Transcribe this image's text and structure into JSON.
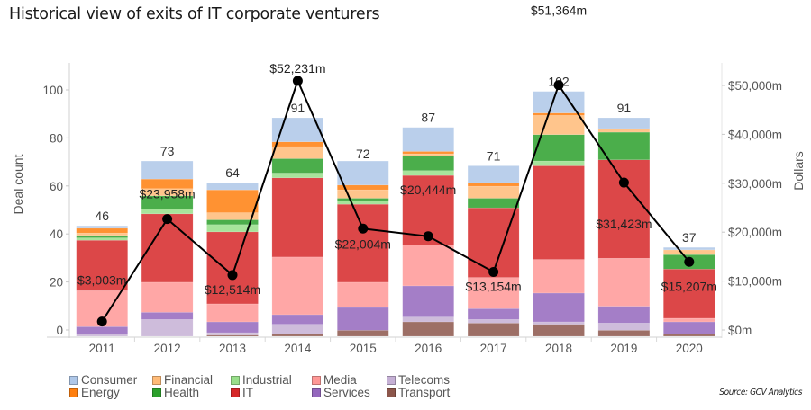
{
  "title": "Historical view of exits of IT corporate venturers",
  "source": "Source: GCV Analytics",
  "chart_data": {
    "type": "bar",
    "subtype": "stacked-bar-with-line",
    "title": "Historical view of exits of IT corporate venturers",
    "xlabel": "",
    "ylabel": "Deal count",
    "y2label": "Dollars",
    "categories": [
      "2011",
      "2012",
      "2013",
      "2014",
      "2015",
      "2016",
      "2017",
      "2018",
      "2019",
      "2020"
    ],
    "ylim": [
      0,
      110
    ],
    "yticks": [
      0,
      20,
      40,
      60,
      80,
      100
    ],
    "y2lim": [
      0,
      55000
    ],
    "y2ticks": [
      0,
      10000,
      20000,
      30000,
      40000,
      50000
    ],
    "y2tick_labels": [
      "$0m",
      "$10,000m",
      "$20,000m",
      "$30,000m",
      "$40,000m",
      "$50,000m"
    ],
    "stack_order_bottom_to_top": [
      "Transport",
      "Telecoms",
      "Services",
      "Media",
      "IT",
      "Industrial",
      "Health",
      "Financial",
      "Energy",
      "Consumer"
    ],
    "series": [
      {
        "name": "Consumer",
        "color": "#aec7e8",
        "values": [
          1,
          7.5,
          3,
          10,
          10,
          10,
          7,
          9,
          4.5,
          1
        ]
      },
      {
        "name": "Energy",
        "color": "#ff7f0e",
        "values": [
          2,
          4,
          9.5,
          2,
          2,
          1,
          1.5,
          1,
          0,
          0
        ]
      },
      {
        "name": "Financial",
        "color": "#ffbb78",
        "values": [
          1,
          3,
          3,
          5,
          3.5,
          1,
          5,
          8,
          1.5,
          2
        ]
      },
      {
        "name": "Health",
        "color": "#2ca02c",
        "values": [
          1,
          5.5,
          2,
          6,
          1,
          6,
          4,
          11,
          11.5,
          6
        ]
      },
      {
        "name": "Industrial",
        "color": "#98df8a",
        "values": [
          1,
          2,
          3,
          2,
          1.5,
          2,
          0,
          2,
          0,
          0
        ]
      },
      {
        "name": "IT",
        "color": "#d62728",
        "values": [
          21,
          28.5,
          30,
          33,
          32.5,
          29,
          29,
          39,
          41,
          20.5
        ]
      },
      {
        "name": "Media",
        "color": "#ff9896",
        "values": [
          15,
          12.5,
          7.5,
          24,
          10.5,
          17,
          13,
          14,
          20,
          1.5
        ]
      },
      {
        "name": "Services",
        "color": "#9467bd",
        "values": [
          3,
          3,
          4.5,
          4,
          9.5,
          13,
          4.5,
          12,
          7,
          5
        ]
      },
      {
        "name": "Telecoms",
        "color": "#c5b0d5",
        "values": [
          1,
          7,
          1,
          4,
          0,
          2,
          1.5,
          1,
          3,
          0
        ]
      },
      {
        "name": "Transport",
        "color": "#8c564b",
        "values": [
          0,
          0,
          0.5,
          1,
          2.5,
          6,
          5.5,
          5,
          2.5,
          1
        ]
      }
    ],
    "totals": [
      46,
      73,
      64,
      91,
      72,
      87,
      71,
      102,
      91,
      37
    ],
    "line": {
      "name": "Dollars",
      "axis": "right",
      "values": [
        3003,
        23958,
        12514,
        52231,
        22004,
        20444,
        13154,
        51364,
        31423,
        15207
      ],
      "labels": [
        "$3,003m",
        "$23,958m",
        "$12,514m",
        "$52,231m",
        "$22,004m",
        "$20,444m",
        "$13,154m",
        "$51,364m",
        "$31,423m",
        "$15,207m"
      ]
    },
    "legend": {
      "placement": "bottom-left",
      "items": [
        "Consumer",
        "Financial",
        "Industrial",
        "Media",
        "Telecoms",
        "Energy",
        "Health",
        "IT",
        "Services",
        "Transport"
      ]
    },
    "grid": false
  }
}
